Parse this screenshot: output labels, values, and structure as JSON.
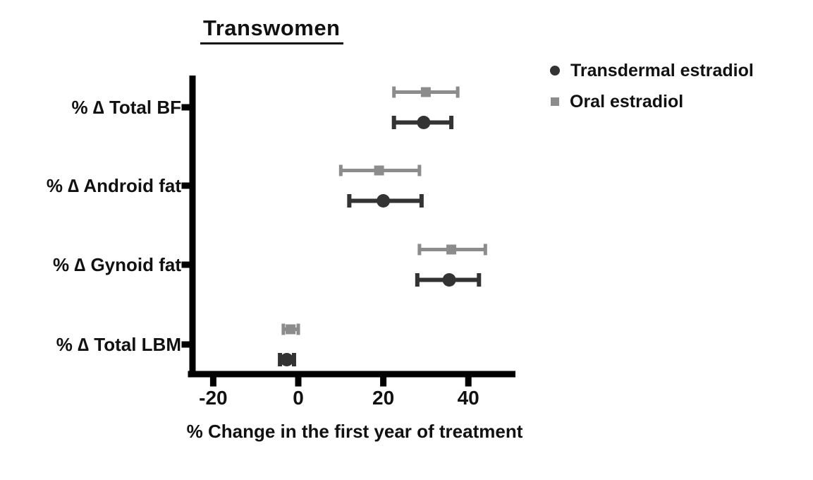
{
  "title": "Transwomen",
  "chart_data": {
    "type": "scatter",
    "subtype": "horizontal-forest-plot-with-error-bars",
    "title": "Transwomen",
    "xlabel": "% Change in the first year of treatment",
    "categories": [
      "% ∆ Total BF",
      "% ∆ Android fat",
      "% ∆ Gynoid fat",
      "% ∆ Total LBM"
    ],
    "x_ticks": [
      -20,
      0,
      20,
      40
    ],
    "x_tick_labels": [
      "-20",
      "0",
      "20",
      "40"
    ],
    "xlim": [
      -25,
      51
    ],
    "grid": false,
    "legend_position": "top-right",
    "axis_color": "#000000",
    "series": [
      {
        "name": "Transdermal estradiol",
        "marker": "circle",
        "color": "#333333",
        "values": [
          29.5,
          20,
          35.5,
          -2.7
        ],
        "ci_low": [
          22.5,
          12,
          28,
          -4.3
        ],
        "ci_high": [
          36,
          29,
          42.5,
          -1
        ]
      },
      {
        "name": "Oral estradiol",
        "marker": "square",
        "color": "#8c8c8c",
        "values": [
          30,
          19,
          36,
          -1.8
        ],
        "ci_low": [
          22.5,
          10,
          28.5,
          -3.5
        ],
        "ci_high": [
          37.5,
          28.5,
          44,
          0
        ]
      }
    ]
  }
}
